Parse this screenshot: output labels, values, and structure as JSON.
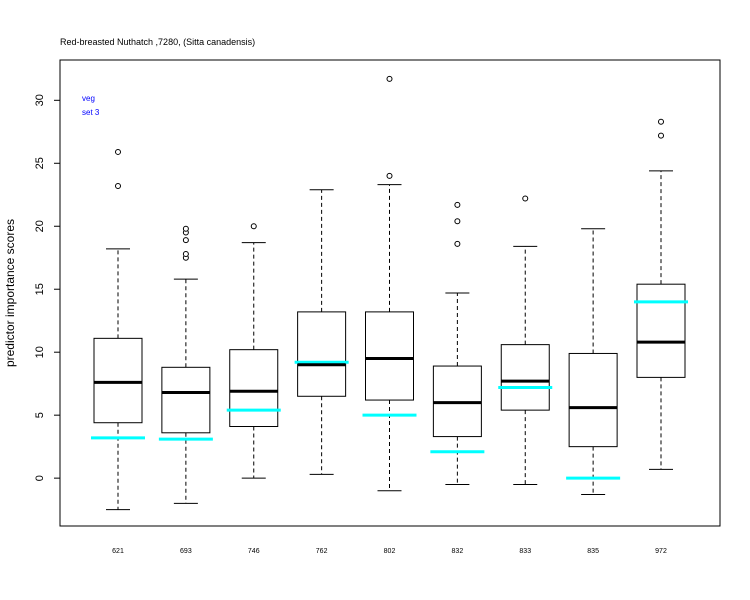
{
  "chart_data": {
    "type": "boxplot",
    "title": "Red-breasted Nuthatch ,7280, (Sitta canadensis)",
    "xlabel": "",
    "ylabel": "predictor importance scores",
    "ylim": [
      -3.8,
      33.2
    ],
    "yticks": [
      0,
      5,
      10,
      15,
      20,
      25,
      30
    ],
    "grid": false,
    "annotations": [
      "veg",
      "set 3"
    ],
    "marker_color": "#00ffff",
    "categories": [
      "621",
      "693",
      "746",
      "762",
      "802",
      "832",
      "833",
      "835",
      "972"
    ],
    "boxes": [
      {
        "category": "621",
        "whisker_low": -2.5,
        "q1": 4.4,
        "median": 7.6,
        "q3": 11.1,
        "whisker_high": 18.2,
        "outliers": [
          23.2,
          25.9
        ],
        "marker": 3.2
      },
      {
        "category": "693",
        "whisker_low": -2.0,
        "q1": 3.6,
        "median": 6.8,
        "q3": 8.8,
        "whisker_high": 15.8,
        "outliers": [
          17.5,
          17.8,
          18.9,
          19.5,
          19.8
        ],
        "marker": 3.1
      },
      {
        "category": "746",
        "whisker_low": 0.0,
        "q1": 4.1,
        "median": 6.9,
        "q3": 10.2,
        "whisker_high": 18.7,
        "outliers": [
          20.0
        ],
        "marker": 5.4
      },
      {
        "category": "762",
        "whisker_low": 0.3,
        "q1": 6.5,
        "median": 9.0,
        "q3": 13.2,
        "whisker_high": 22.9,
        "outliers": [],
        "marker": 9.2
      },
      {
        "category": "802",
        "whisker_low": -1.0,
        "q1": 6.2,
        "median": 9.5,
        "q3": 13.2,
        "whisker_high": 23.3,
        "outliers": [
          24.0,
          31.7
        ],
        "marker": 5.0
      },
      {
        "category": "832",
        "whisker_low": -0.5,
        "q1": 3.3,
        "median": 6.0,
        "q3": 8.9,
        "whisker_high": 14.7,
        "outliers": [
          18.6,
          20.4,
          21.7
        ],
        "marker": 2.1
      },
      {
        "category": "833",
        "whisker_low": -0.5,
        "q1": 5.4,
        "median": 7.7,
        "q3": 10.6,
        "whisker_high": 18.4,
        "outliers": [
          22.2
        ],
        "marker": 7.2
      },
      {
        "category": "835",
        "whisker_low": -1.3,
        "q1": 2.5,
        "median": 5.6,
        "q3": 9.9,
        "whisker_high": 19.8,
        "outliers": [],
        "marker": 0.0
      },
      {
        "category": "972",
        "whisker_low": 0.7,
        "q1": 8.0,
        "median": 10.8,
        "q3": 15.4,
        "whisker_high": 24.4,
        "outliers": [
          27.2,
          28.3
        ],
        "marker": 14.0
      }
    ]
  }
}
